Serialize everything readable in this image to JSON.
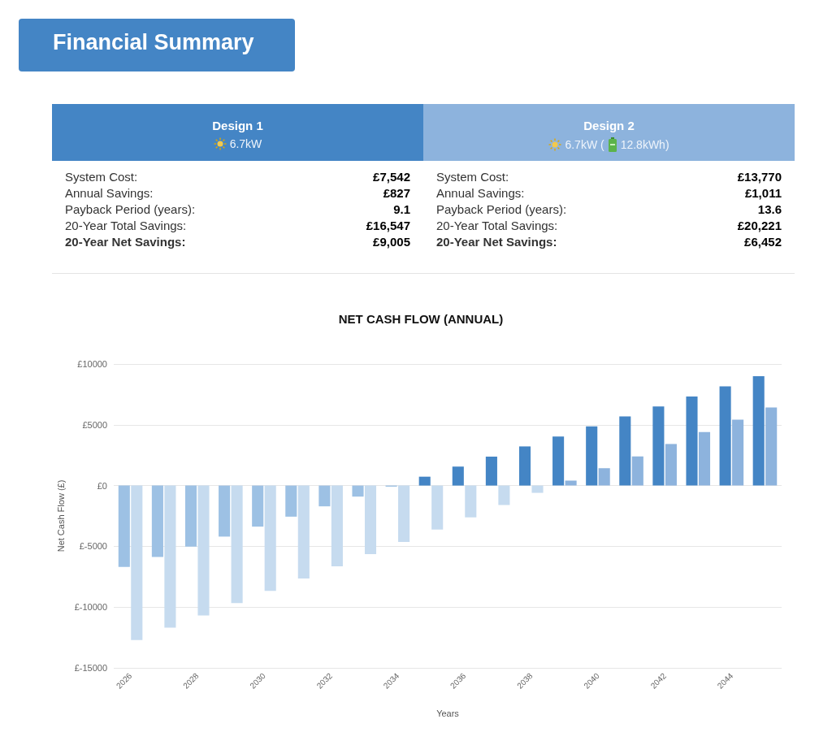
{
  "chart_data": [
    {
      "type": "other",
      "title": "Financial Summary",
      "color": "#4485c5"
    },
    {
      "type": "other",
      "title": "Design 1",
      "color": "#4485c5",
      "annotations": [
        "6.7kW",
        "System Cost:",
        "£7,542",
        "Annual Savings:",
        "£827",
        "Payback Period (years):",
        "9.1",
        "20-Year Total Savings:",
        "£16,547",
        "20-Year Net Savings:",
        "£9,005"
      ]
    },
    {
      "type": "other",
      "title": "Design 2",
      "color": "#8db3dd",
      "annotations": [
        "6.7kW (",
        "12.8kWh)",
        "System Cost:",
        "£13,770",
        "Annual Savings:",
        "£1,011",
        "Payback Period (years):",
        "13.6",
        "20-Year Total Savings:",
        "£20,221",
        "20-Year Net Savings:",
        "£6,452"
      ]
    },
    {
      "type": "bar",
      "title": "NET CASH FLOW (ANNUAL)",
      "xlabel": "Years",
      "ylabel": "Net Cash Flow (£)",
      "categories": [
        "2026",
        null,
        "2028",
        null,
        "2030",
        null,
        "2032",
        null,
        "2034",
        null,
        "2036",
        null,
        "2038",
        null,
        "2040",
        null,
        "2042",
        null,
        "2044",
        null
      ],
      "series": [
        {
          "colors": [
            "#9dc1e4",
            "#9dc1e4",
            "#9dc1e4",
            "#9dc1e4",
            "#9dc1e4",
            "#9dc1e4",
            "#9dc1e4",
            "#9dc1e4",
            "#9dc1e4",
            "#4485c5",
            "#4485c5",
            "#4485c5",
            "#4485c5",
            "#4485c5",
            "#4485c5",
            "#4485c5",
            "#4485c5",
            "#4485c5",
            "#4485c5",
            "#4485c5"
          ],
          "values": [
            -6700,
            -5870,
            -5020,
            -4200,
            -3380,
            -2560,
            -1710,
            -910,
            -90,
            730,
            1560,
            2380,
            3220,
            4040,
            4870,
            5690,
            6510,
            7330,
            8160,
            9000
          ]
        },
        {
          "colors": [
            "#c6dbef",
            "#c6dbef",
            "#c6dbef",
            "#c6dbef",
            "#c6dbef",
            "#c6dbef",
            "#c6dbef",
            "#c6dbef",
            "#c6dbef",
            "#c6dbef",
            "#c6dbef",
            "#c6dbef",
            "#c6dbef",
            "#8db3dd",
            "#8db3dd",
            "#8db3dd",
            "#8db3dd",
            "#8db3dd",
            "#8db3dd",
            "#8db3dd"
          ],
          "values": [
            -12710,
            -11690,
            -10690,
            -9670,
            -8670,
            -7640,
            -6640,
            -5640,
            -4640,
            -3620,
            -2620,
            -1600,
            -600,
            400,
            1420,
            2400,
            3420,
            4400,
            5420,
            6420
          ]
        }
      ],
      "ylim": [
        -15000,
        10000
      ],
      "yticks": [
        {
          "value": -15000,
          "label": "£-15000"
        },
        {
          "value": -10000,
          "label": "£-10000"
        },
        {
          "value": -5000,
          "label": "£-5000"
        },
        {
          "value": 0,
          "label": "£0"
        },
        {
          "value": 5000,
          "label": "£5000"
        },
        {
          "value": 10000,
          "label": "£10000"
        }
      ],
      "grid": "y"
    }
  ]
}
